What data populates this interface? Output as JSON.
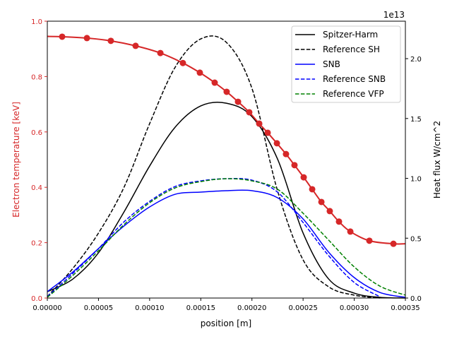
{
  "chart_data": {
    "type": "line",
    "xlabel": "position [m]",
    "xlim": [
      0,
      0.00035
    ],
    "xticks": [
      "0.00000",
      "0.00005",
      "0.00010",
      "0.00015",
      "0.00020",
      "0.00025",
      "0.00030",
      "0.00035"
    ],
    "left_axis": {
      "ylabel": "Electron temperature [keV]",
      "ylim": [
        0,
        1.0
      ],
      "yticks": [
        "0.0",
        "0.2",
        "0.4",
        "0.6",
        "0.8",
        "1.0"
      ],
      "color": "#d62728"
    },
    "right_axis": {
      "ylabel": "Heat flux W/cm^2",
      "offset_label": "1e13",
      "ylim": [
        0,
        2.313
      ],
      "yticks": [
        "0.0",
        "0.5",
        "1.0",
        "1.5",
        "2.0"
      ]
    },
    "temperature": {
      "color": "#d62728",
      "line_x": [
        0,
        1.45e-05,
        3.87e-05,
        6.21e-05,
        8.63e-05,
        0.0001105,
        0.0001325,
        0.0001491,
        0.0001636,
        0.0001753,
        0.0001864,
        0.0001974,
        0.0002071,
        0.0002154,
        0.0002244,
        0.0002333,
        0.0002416,
        0.0002506,
        0.0002589,
        0.0002679,
        0.0002761,
        0.0002851,
        0.0002962,
        0.0003148,
        0.0003383,
        0.00035
      ],
      "line_y": [
        0.945,
        0.944,
        0.939,
        0.929,
        0.911,
        0.885,
        0.849,
        0.814,
        0.778,
        0.745,
        0.709,
        0.671,
        0.63,
        0.597,
        0.559,
        0.52,
        0.48,
        0.436,
        0.393,
        0.347,
        0.314,
        0.276,
        0.24,
        0.207,
        0.196,
        0.196
      ],
      "markers_from_index": 1,
      "markers_to_index": 24
    },
    "x": [
      0,
      2.5e-05,
      5e-05,
      7.5e-05,
      0.0001,
      0.000125,
      0.00015,
      0.000175,
      0.0002,
      0.000225,
      0.00025,
      0.000275,
      0.0003,
      0.000325,
      0.00035
    ],
    "series": [
      {
        "name": "Spitzer-Harm",
        "color": "#000000",
        "dash": false,
        "values": [
          0.053,
          0.159,
          0.378,
          0.72,
          1.103,
          1.428,
          1.605,
          1.628,
          1.516,
          1.162,
          0.543,
          0.159,
          0.041,
          0.006,
          0.0
        ]
      },
      {
        "name": "Reference SH",
        "color": "#000000",
        "dash": true,
        "values": [
          0.012,
          0.248,
          0.543,
          0.926,
          1.457,
          1.929,
          2.165,
          2.136,
          1.752,
          0.897,
          0.319,
          0.094,
          0.024,
          0.0,
          null
        ]
      },
      {
        "name": "SNB",
        "color": "#0000ff",
        "dash": false,
        "values": [
          0.053,
          0.218,
          0.413,
          0.602,
          0.761,
          0.867,
          0.885,
          0.897,
          0.897,
          0.838,
          0.661,
          0.383,
          0.171,
          0.047,
          0.006
        ]
      },
      {
        "name": "Reference SNB",
        "color": "#0000ff",
        "dash": true,
        "values": [
          0.012,
          0.206,
          0.413,
          0.637,
          0.808,
          0.932,
          0.979,
          0.997,
          0.985,
          0.885,
          0.631,
          0.354,
          0.13,
          0.012,
          null
        ]
      },
      {
        "name": "Reference VFP",
        "color": "#008000",
        "dash": true,
        "values": [
          0.006,
          0.189,
          0.395,
          0.614,
          0.796,
          0.92,
          0.973,
          0.997,
          0.979,
          0.909,
          0.708,
          0.484,
          0.26,
          0.1,
          0.024
        ]
      }
    ],
    "legend_position": "top-right",
    "grid": false
  }
}
